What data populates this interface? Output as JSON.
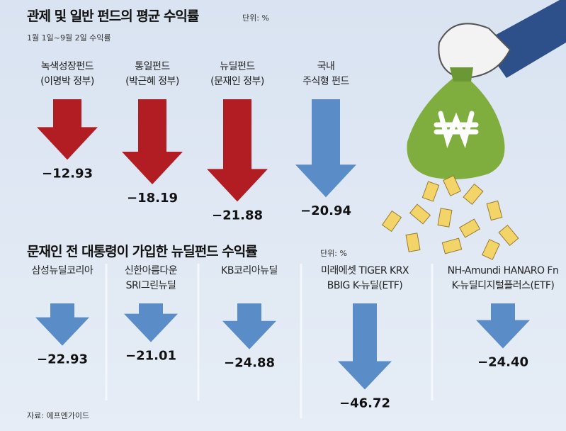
{
  "chart_data": [
    {
      "type": "arrow",
      "title": "관제 및 일반 펀드의 평균 수익률",
      "unit": "단위: %",
      "subtitle": "1월 1일~9월 2일 수익률",
      "categories": [
        "녹색성장펀드\n(이명박 정부)",
        "통일펀드\n(박근혜 정부)",
        "뉴딜펀드\n(문재인 정부)",
        "국내\n주식형 펀드"
      ],
      "values": [
        -12.93,
        -18.19,
        -21.88,
        -20.94
      ],
      "value_labels": [
        "−12.93",
        "−18.19",
        "−21.88",
        "−20.94"
      ],
      "colors": [
        "#b11d22",
        "#b11d22",
        "#b11d22",
        "#5a8cc8"
      ]
    },
    {
      "type": "arrow",
      "title": "문재인 전 대통령이 가입한 뉴딜펀드 수익률",
      "unit": "단위: %",
      "categories": [
        "삼성뉴딜코리아",
        "신한아름다운\nSRI그린뉴딜",
        "KB코리아뉴딜",
        "미래에셋 TIGER KRX\nBBIG K-뉴딜(ETF)",
        "NH-Amundi HANARO Fn\nK-뉴딜디지털플러스(ETF)"
      ],
      "values": [
        -22.93,
        -21.01,
        -24.88,
        -46.72,
        -24.4
      ],
      "value_labels": [
        "−22.93",
        "−21.01",
        "−24.88",
        "−46.72",
        "−24.40"
      ],
      "colors": [
        "#5a8cc8",
        "#5a8cc8",
        "#5a8cc8",
        "#5a8cc8",
        "#5a8cc8"
      ],
      "source": "자료: 에프엔가이드"
    }
  ]
}
